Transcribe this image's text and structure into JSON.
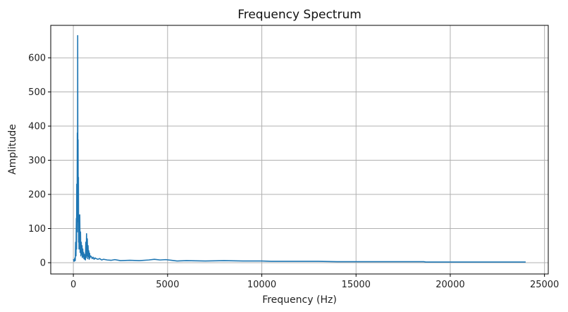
{
  "chart_data": {
    "type": "line",
    "title": "Frequency Spectrum",
    "xlabel": "Frequency (Hz)",
    "ylabel": "Amplitude",
    "xlim": [
      -1200,
      25200
    ],
    "ylim": [
      -33,
      695
    ],
    "xticks": [
      0,
      5000,
      10000,
      15000,
      20000,
      25000
    ],
    "xtick_labels": [
      "0",
      "5000",
      "10000",
      "15000",
      "20000",
      "25000"
    ],
    "yticks": [
      0,
      100,
      200,
      300,
      400,
      500,
      600
    ],
    "ytick_labels": [
      "0",
      "100",
      "200",
      "300",
      "400",
      "500",
      "600"
    ],
    "grid": true,
    "legend": "none",
    "series": [
      {
        "color": "#1f77b4",
        "x": [
          0,
          40,
          80,
          100,
          120,
          140,
          160,
          170,
          180,
          190,
          200,
          210,
          220,
          230,
          240,
          250,
          260,
          270,
          280,
          290,
          300,
          310,
          320,
          340,
          360,
          380,
          400,
          420,
          440,
          460,
          480,
          500,
          520,
          540,
          560,
          580,
          600,
          620,
          640,
          660,
          680,
          700,
          720,
          740,
          760,
          780,
          800,
          820,
          840,
          860,
          880,
          900,
          950,
          1000,
          1050,
          1100,
          1150,
          1200,
          1300,
          1400,
          1500,
          1600,
          1800,
          2000,
          2200,
          2500,
          3000,
          3500,
          4000,
          4300,
          4600,
          4900,
          5200,
          5500,
          6000,
          7000,
          8000,
          9000,
          10000,
          10500,
          11000,
          12000,
          13000,
          14000,
          15000,
          16000,
          17000,
          18000,
          18600,
          18700,
          19000,
          20000,
          21000,
          22000,
          23000,
          24000
        ],
        "y": [
          10,
          4,
          14,
          6,
          60,
          20,
          130,
          40,
          230,
          90,
          150,
          380,
          120,
          665,
          200,
          360,
          90,
          250,
          60,
          140,
          40,
          110,
          50,
          140,
          30,
          90,
          20,
          60,
          25,
          50,
          15,
          40,
          18,
          30,
          12,
          25,
          10,
          22,
          8,
          60,
          15,
          85,
          20,
          70,
          12,
          50,
          18,
          35,
          10,
          28,
          14,
          20,
          18,
          12,
          16,
          10,
          14,
          12,
          10,
          12,
          8,
          10,
          8,
          7,
          9,
          6,
          7,
          6,
          8,
          10,
          8,
          9,
          7,
          5,
          6,
          5,
          6,
          5,
          5,
          4,
          4,
          4,
          4,
          3,
          3,
          3,
          3,
          3,
          3,
          2,
          2,
          2,
          2,
          2,
          2,
          2
        ]
      }
    ]
  }
}
